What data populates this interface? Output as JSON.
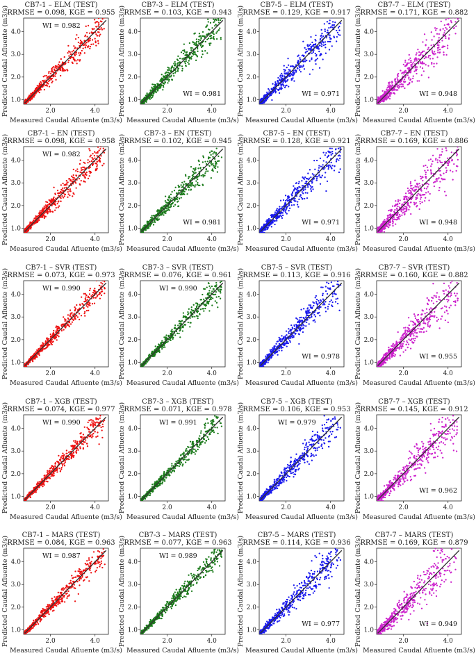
{
  "figure": {
    "xlabel": "Measured Caudal Afluente (m3/s)",
    "ylabel": "Predicted Caudal Afluente (m3/s)",
    "wi_prefix": "WI = "
  },
  "colors": {
    "CB7-1": "#ee1111",
    "CB7-3": "#1a7a1a",
    "CB7-5": "#1a1aee",
    "CB7-7": "#cc22cc",
    "fit_line": "#333333"
  },
  "chart_data": [
    {
      "type": "scatter",
      "station": "CB7-1",
      "model": "ELM",
      "title": "CB7-1 – ELM (TEST)",
      "metrics": "RRMSE = 0.098, KGE = 0.955",
      "wi": "0.982",
      "wi_pos": "top-left",
      "xlim": [
        0.8,
        4.6
      ],
      "ylim": [
        0.8,
        4.6
      ],
      "xticks": [
        2.0,
        4.0
      ],
      "yticks": [
        1.0,
        2.0,
        3.0,
        4.0
      ],
      "spread": 0.098
    },
    {
      "type": "scatter",
      "station": "CB7-3",
      "model": "ELM",
      "title": "CB7-3 – ELM (TEST)",
      "metrics": "RRMSE = 0.103, KGE = 0.943",
      "wi": "0.981",
      "wi_pos": "bottom-right",
      "xlim": [
        0.8,
        4.6
      ],
      "ylim": [
        0.8,
        4.6
      ],
      "xticks": [
        2.0,
        4.0
      ],
      "yticks": [
        1.0,
        2.0,
        3.0,
        4.0
      ],
      "spread": 0.103
    },
    {
      "type": "scatter",
      "station": "CB7-5",
      "model": "ELM",
      "title": "CB7-5 – ELM (TEST)",
      "metrics": "RRMSE = 0.129, KGE = 0.917",
      "wi": "0.971",
      "wi_pos": "bottom-right",
      "xlim": [
        0.8,
        4.6
      ],
      "ylim": [
        0.8,
        4.6
      ],
      "xticks": [
        2.0,
        4.0
      ],
      "yticks": [
        1.0,
        2.0,
        3.0,
        4.0
      ],
      "spread": 0.129
    },
    {
      "type": "scatter",
      "station": "CB7-7",
      "model": "ELM",
      "title": "CB7-7 – ELM (TEST)",
      "metrics": "RRMSE = 0.171, KGE = 0.882",
      "wi": "0.948",
      "wi_pos": "bottom-right",
      "xlim": [
        0.8,
        4.6
      ],
      "ylim": [
        0.8,
        4.6
      ],
      "xticks": [
        2.0,
        4.0
      ],
      "yticks": [
        1.0,
        2.0,
        3.0,
        4.0
      ],
      "spread": 0.171
    },
    {
      "type": "scatter",
      "station": "CB7-1",
      "model": "EN",
      "title": "CB7-1 – EN (TEST)",
      "metrics": "RRMSE = 0.098, KGE = 0.958",
      "wi": "0.982",
      "wi_pos": "top-left",
      "xlim": [
        0.8,
        4.6
      ],
      "ylim": [
        0.8,
        4.6
      ],
      "xticks": [
        2.0,
        4.0
      ],
      "yticks": [
        1.0,
        2.0,
        3.0,
        4.0
      ],
      "spread": 0.098
    },
    {
      "type": "scatter",
      "station": "CB7-3",
      "model": "EN",
      "title": "CB7-3 – EN (TEST)",
      "metrics": "RRMSE = 0.102, KGE = 0.945",
      "wi": "0.981",
      "wi_pos": "bottom-right",
      "xlim": [
        0.8,
        4.6
      ],
      "ylim": [
        0.8,
        4.6
      ],
      "xticks": [
        2.0,
        4.0
      ],
      "yticks": [
        1.0,
        2.0,
        3.0,
        4.0
      ],
      "spread": 0.102
    },
    {
      "type": "scatter",
      "station": "CB7-5",
      "model": "EN",
      "title": "CB7-5 – EN (TEST)",
      "metrics": "RRMSE = 0.128, KGE = 0.921",
      "wi": "0.971",
      "wi_pos": "bottom-right",
      "xlim": [
        0.8,
        4.6
      ],
      "ylim": [
        0.8,
        4.6
      ],
      "xticks": [
        2.0,
        4.0
      ],
      "yticks": [
        1.0,
        2.0,
        3.0,
        4.0
      ],
      "spread": 0.128
    },
    {
      "type": "scatter",
      "station": "CB7-7",
      "model": "EN",
      "title": "CB7-7 – EN (TEST)",
      "metrics": "RRMSE = 0.169, KGE = 0.886",
      "wi": "0.948",
      "wi_pos": "bottom-right",
      "xlim": [
        0.8,
        4.6
      ],
      "ylim": [
        0.8,
        4.6
      ],
      "xticks": [
        2.0,
        4.0
      ],
      "yticks": [
        1.0,
        2.0,
        3.0,
        4.0
      ],
      "spread": 0.169
    },
    {
      "type": "scatter",
      "station": "CB7-1",
      "model": "SVR",
      "title": "CB7-1 – SVR (TEST)",
      "metrics": "RRMSE = 0.073, KGE = 0.973",
      "wi": "0.990",
      "wi_pos": "top-left",
      "xlim": [
        0.8,
        4.6
      ],
      "ylim": [
        0.8,
        4.6
      ],
      "xticks": [
        2.0,
        4.0
      ],
      "yticks": [
        1.0,
        2.0,
        3.0,
        4.0
      ],
      "spread": 0.073
    },
    {
      "type": "scatter",
      "station": "CB7-3",
      "model": "SVR",
      "title": "CB7-3 – SVR (TEST)",
      "metrics": "RRMSE = 0.076, KGE = 0.961",
      "wi": "0.990",
      "wi_pos": "top-left",
      "xlim": [
        0.8,
        4.6
      ],
      "ylim": [
        0.8,
        4.6
      ],
      "xticks": [
        2.0,
        4.0
      ],
      "yticks": [
        1.0,
        2.0,
        3.0,
        4.0
      ],
      "spread": 0.076
    },
    {
      "type": "scatter",
      "station": "CB7-5",
      "model": "SVR",
      "title": "CB7-5 – SVR (TEST)",
      "metrics": "RRMSE = 0.113, KGE = 0.916",
      "wi": "0.978",
      "wi_pos": "bottom-right",
      "xlim": [
        0.8,
        4.6
      ],
      "ylim": [
        0.8,
        4.6
      ],
      "xticks": [
        2.0,
        4.0
      ],
      "yticks": [
        1.0,
        2.0,
        3.0,
        4.0
      ],
      "spread": 0.113
    },
    {
      "type": "scatter",
      "station": "CB7-7",
      "model": "SVR",
      "title": "CB7-7 – SVR (TEST)",
      "metrics": "RRMSE = 0.160, KGE = 0.882",
      "wi": "0.955",
      "wi_pos": "bottom-right",
      "xlim": [
        0.8,
        4.6
      ],
      "ylim": [
        0.8,
        4.6
      ],
      "xticks": [
        2.0,
        4.0
      ],
      "yticks": [
        1.0,
        2.0,
        3.0,
        4.0
      ],
      "spread": 0.16
    },
    {
      "type": "scatter",
      "station": "CB7-1",
      "model": "XGB",
      "title": "CB7-1 – XGB (TEST)",
      "metrics": "RRMSE = 0.074, KGE = 0.977",
      "wi": "0.990",
      "wi_pos": "top-left",
      "xlim": [
        0.8,
        4.6
      ],
      "ylim": [
        0.8,
        4.6
      ],
      "xticks": [
        2.0,
        4.0
      ],
      "yticks": [
        1.0,
        2.0,
        3.0,
        4.0
      ],
      "spread": 0.074
    },
    {
      "type": "scatter",
      "station": "CB7-3",
      "model": "XGB",
      "title": "CB7-3 – XGB (TEST)",
      "metrics": "RRMSE = 0.071, KGE = 0.978",
      "wi": "0.991",
      "wi_pos": "top-left",
      "xlim": [
        0.8,
        4.6
      ],
      "ylim": [
        0.8,
        4.6
      ],
      "xticks": [
        2.0,
        4.0
      ],
      "yticks": [
        1.0,
        2.0,
        3.0,
        4.0
      ],
      "spread": 0.071
    },
    {
      "type": "scatter",
      "station": "CB7-5",
      "model": "XGB",
      "title": "CB7-5 – XGB (TEST)",
      "metrics": "RRMSE = 0.106, KGE = 0.953",
      "wi": "0.979",
      "wi_pos": "top-left",
      "xlim": [
        0.8,
        4.6
      ],
      "ylim": [
        0.8,
        4.6
      ],
      "xticks": [
        2.0,
        4.0
      ],
      "yticks": [
        1.0,
        2.0,
        3.0,
        4.0
      ],
      "spread": 0.106
    },
    {
      "type": "scatter",
      "station": "CB7-7",
      "model": "XGB",
      "title": "CB7-7 – XGB (TEST)",
      "metrics": "RRMSE = 0.145, KGE = 0.912",
      "wi": "0.962",
      "wi_pos": "bottom-right",
      "xlim": [
        0.8,
        4.6
      ],
      "ylim": [
        0.8,
        4.6
      ],
      "xticks": [
        2.0,
        4.0
      ],
      "yticks": [
        1.0,
        2.0,
        3.0,
        4.0
      ],
      "spread": 0.145
    },
    {
      "type": "scatter",
      "station": "CB7-1",
      "model": "MARS",
      "title": "CB7-1 – MARS (TEST)",
      "metrics": "RRMSE = 0.084, KGE = 0.963",
      "wi": "0.987",
      "wi_pos": "top-left",
      "xlim": [
        0.8,
        4.6
      ],
      "ylim": [
        0.8,
        4.6
      ],
      "xticks": [
        2.0,
        4.0
      ],
      "yticks": [
        1.0,
        2.0,
        3.0,
        4.0
      ],
      "spread": 0.084
    },
    {
      "type": "scatter",
      "station": "CB7-3",
      "model": "MARS",
      "title": "CB7-3 – MARS (TEST)",
      "metrics": "RRMSE = 0.077, KGE = 0.963",
      "wi": "0.989",
      "wi_pos": "top-left",
      "xlim": [
        0.8,
        4.6
      ],
      "ylim": [
        0.8,
        4.6
      ],
      "xticks": [
        2.0,
        4.0
      ],
      "yticks": [
        1.0,
        2.0,
        3.0,
        4.0
      ],
      "spread": 0.077
    },
    {
      "type": "scatter",
      "station": "CB7-5",
      "model": "MARS",
      "title": "CB7-5 – MARS (TEST)",
      "metrics": "RRMSE = 0.114, KGE = 0.936",
      "wi": "0.977",
      "wi_pos": "bottom-right",
      "xlim": [
        0.8,
        4.6
      ],
      "ylim": [
        0.8,
        4.6
      ],
      "xticks": [
        2.0,
        4.0
      ],
      "yticks": [
        1.0,
        2.0,
        3.0,
        4.0
      ],
      "spread": 0.114
    },
    {
      "type": "scatter",
      "station": "CB7-7",
      "model": "MARS",
      "title": "CB7-7 – MARS (TEST)",
      "metrics": "RRMSE = 0.169, KGE = 0.879",
      "wi": "0.949",
      "wi_pos": "bottom-right",
      "xlim": [
        0.8,
        4.6
      ],
      "ylim": [
        0.8,
        4.6
      ],
      "xticks": [
        2.0,
        4.0
      ],
      "yticks": [
        1.0,
        2.0,
        3.0,
        4.0
      ],
      "spread": 0.169
    }
  ]
}
